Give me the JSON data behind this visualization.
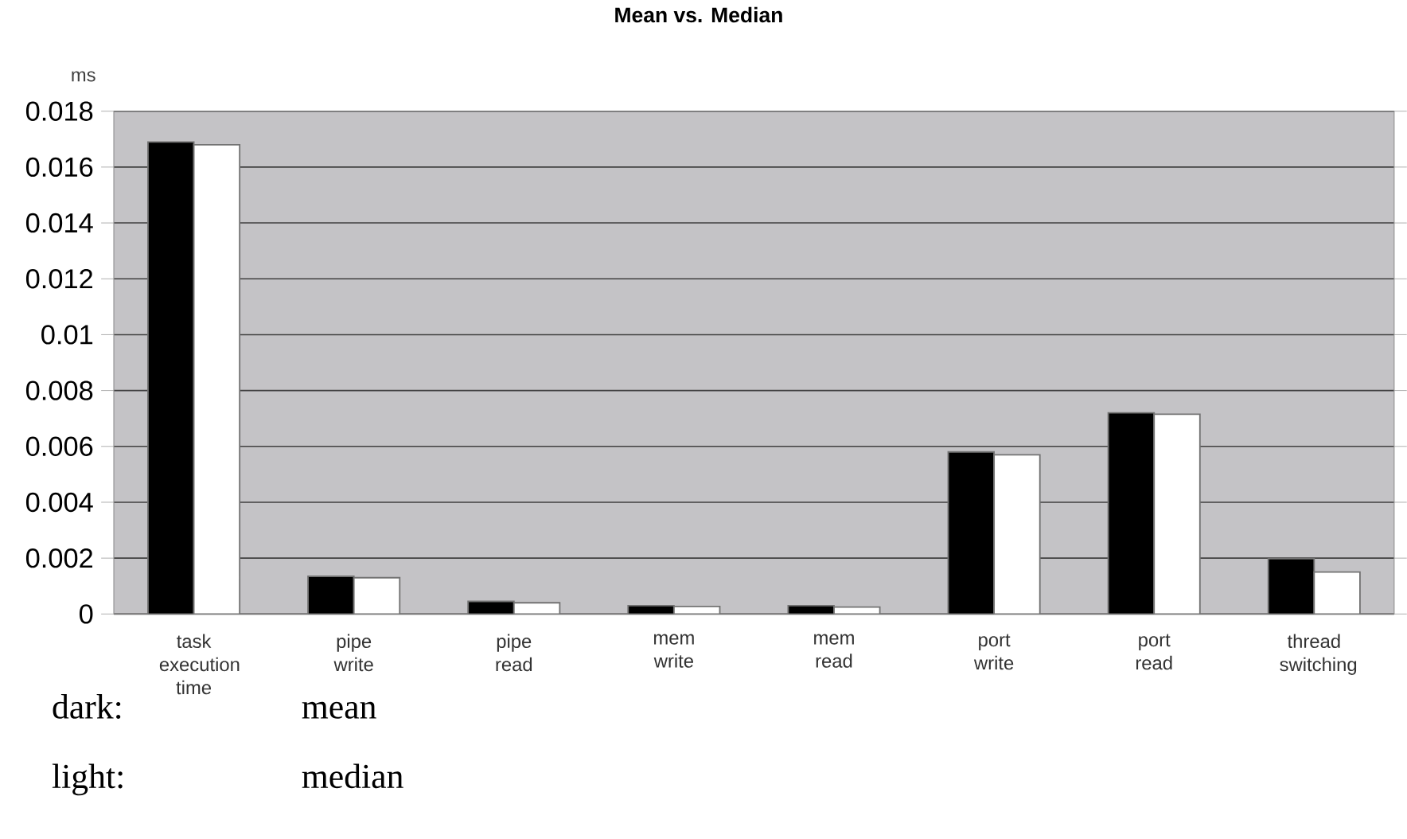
{
  "chart_data": {
    "type": "bar",
    "title": "Mean vs. Median",
    "ylabel": "ms",
    "categories": [
      "task execution time",
      "pipe write",
      "pipe read",
      "mem write",
      "mem read",
      "port write",
      "port read",
      "thread switching"
    ],
    "series": [
      {
        "color": "#000000",
        "values": [
          0.0169,
          0.00135,
          0.00045,
          0.0003,
          0.0003,
          0.0058,
          0.0072,
          0.00198
        ]
      },
      {
        "color": "#ffffff",
        "values": [
          0.0168,
          0.0013,
          0.0004,
          0.00027,
          0.00025,
          0.0057,
          0.00715,
          0.0015
        ]
      }
    ],
    "ylim": [
      0,
      0.018
    ],
    "yticks": [
      0,
      0.002,
      0.004,
      0.006,
      0.008,
      0.01,
      0.012,
      0.014,
      0.016,
      0.018
    ],
    "grid": "y",
    "annotations": [
      "dark:",
      "mean",
      "light:",
      "median"
    ]
  }
}
